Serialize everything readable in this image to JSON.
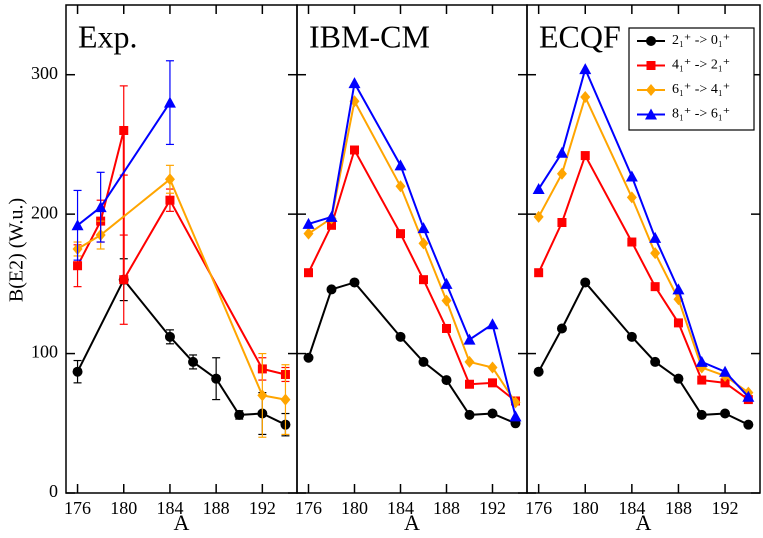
{
  "chart_data": [
    {
      "type": "line",
      "title": "Exp.",
      "ylabel": "B(E2) (W.u.)",
      "xlabel": "A",
      "xlim": [
        175,
        195
      ],
      "xticks": [
        176,
        180,
        184,
        188,
        192
      ],
      "ylim": [
        0,
        350
      ],
      "yticks": [
        0,
        100,
        200,
        300
      ],
      "show_ytick_labels": true,
      "series": [
        {
          "color": "#000000",
          "marker": "circle",
          "x": [
            176,
            180,
            184,
            186,
            188,
            190,
            192,
            194
          ],
          "values": [
            87,
            153,
            112,
            94,
            82,
            56,
            57,
            49
          ],
          "errors": [
            8,
            15,
            5,
            5,
            15,
            3,
            15,
            8
          ]
        },
        {
          "color": "#ff0000",
          "marker": "square",
          "x": [
            176,
            178,
            180,
            180,
            184,
            192,
            194
          ],
          "values": [
            163,
            195,
            260,
            153,
            210,
            89,
            85
          ],
          "errors": [
            15,
            15,
            32,
            32,
            8,
            8,
            5
          ]
        },
        {
          "color": "#ffa500",
          "marker": "diamond",
          "x": [
            176,
            178,
            184,
            192,
            194
          ],
          "values": [
            175,
            185,
            225,
            70,
            67
          ],
          "errors": [
            5,
            10,
            10,
            30,
            25
          ]
        },
        {
          "color": "#0000ff",
          "marker": "triangle",
          "x": [
            176,
            178,
            184
          ],
          "values": [
            192,
            205,
            280
          ],
          "errors": [
            25,
            25,
            30
          ]
        }
      ]
    },
    {
      "type": "line",
      "title": "IBM-CM",
      "xlabel": "A",
      "xlim": [
        175,
        195
      ],
      "xticks": [
        176,
        180,
        184,
        188,
        192
      ],
      "ylim": [
        0,
        350
      ],
      "yticks": [
        0,
        100,
        200,
        300
      ],
      "show_ytick_labels": false,
      "series": [
        {
          "color": "#000000",
          "marker": "circle",
          "x": [
            176,
            178,
            180,
            184,
            186,
            188,
            190,
            192,
            194
          ],
          "values": [
            97,
            146,
            151,
            112,
            94,
            81,
            56,
            57,
            50
          ]
        },
        {
          "color": "#ff0000",
          "marker": "square",
          "x": [
            176,
            178,
            180,
            184,
            186,
            188,
            190,
            192,
            194
          ],
          "values": [
            158,
            192,
            246,
            186,
            153,
            118,
            78,
            79,
            66
          ]
        },
        {
          "color": "#ffa500",
          "marker": "diamond",
          "x": [
            176,
            178,
            180,
            184,
            186,
            188,
            190,
            192,
            194
          ],
          "values": [
            186,
            197,
            281,
            220,
            179,
            138,
            94,
            90,
            65
          ]
        },
        {
          "color": "#0000ff",
          "marker": "triangle",
          "x": [
            176,
            178,
            180,
            184,
            186,
            188,
            190,
            192,
            194
          ],
          "values": [
            193,
            198,
            294,
            235,
            190,
            150,
            110,
            121,
            55
          ]
        }
      ]
    },
    {
      "type": "line",
      "title": "ECQF",
      "xlabel": "A",
      "xlim": [
        175,
        195
      ],
      "xticks": [
        176,
        180,
        184,
        188,
        192
      ],
      "ylim": [
        0,
        350
      ],
      "yticks": [
        0,
        100,
        200,
        300
      ],
      "show_ytick_labels": false,
      "legend": "upper right",
      "series": [
        {
          "name": "2₁⁺ -> 0₁⁺",
          "color": "#000000",
          "marker": "circle",
          "x": [
            176,
            178,
            180,
            184,
            186,
            188,
            190,
            192,
            194
          ],
          "values": [
            87,
            118,
            151,
            112,
            94,
            82,
            56,
            57,
            49
          ]
        },
        {
          "name": "4₁⁺ -> 2₁⁺",
          "color": "#ff0000",
          "marker": "square",
          "x": [
            176,
            178,
            180,
            184,
            186,
            188,
            190,
            192,
            194
          ],
          "values": [
            158,
            194,
            242,
            180,
            148,
            122,
            81,
            79,
            67
          ]
        },
        {
          "name": "6₁⁺ -> 4₁⁺",
          "color": "#ffa500",
          "marker": "diamond",
          "x": [
            176,
            178,
            180,
            184,
            186,
            188,
            190,
            192,
            194
          ],
          "values": [
            198,
            229,
            284,
            212,
            172,
            139,
            90,
            84,
            72
          ]
        },
        {
          "name": "8₁⁺ -> 6₁⁺",
          "color": "#0000ff",
          "marker": "triangle",
          "x": [
            176,
            178,
            180,
            184,
            186,
            188,
            190,
            192,
            194
          ],
          "values": [
            218,
            244,
            304,
            227,
            183,
            146,
            94,
            87,
            69
          ]
        }
      ]
    }
  ]
}
